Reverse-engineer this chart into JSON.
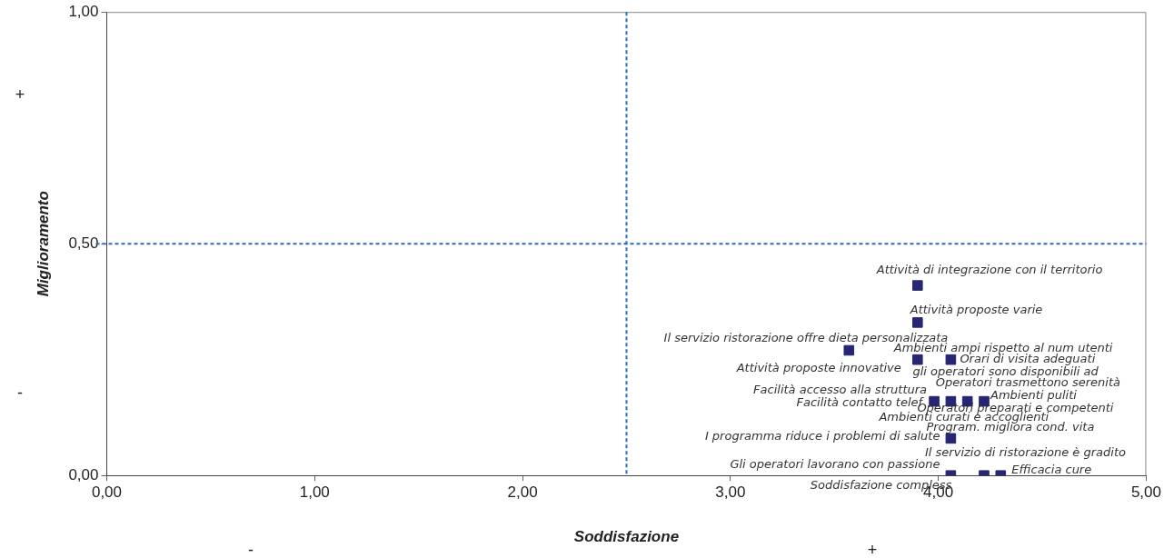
{
  "chart_data": {
    "type": "scatter",
    "xlabel": "Soddisfazione",
    "ylabel": "Miglioramento",
    "x": [
      3.9,
      3.9,
      3.57,
      3.9,
      4.06,
      4.14,
      3.98,
      4.22,
      4.06,
      4.06,
      4.06,
      4.22,
      4.3
    ],
    "values": [
      0.41,
      0.33,
      0.27,
      0.25,
      0.25,
      0.16,
      0.16,
      0.16,
      0.16,
      0.08,
      0,
      0,
      0
    ],
    "color": "#262673",
    "marker": "square",
    "legend": false,
    "grid": false,
    "xlim": [
      0,
      5
    ],
    "xticks": [
      {
        "value": 0,
        "label": "0,00"
      },
      {
        "value": 1,
        "label": "1,00"
      },
      {
        "value": 2,
        "label": "2,00"
      },
      {
        "value": 3,
        "label": "3,00"
      },
      {
        "value": 4,
        "label": "4,00"
      },
      {
        "value": 5,
        "label": "5,00"
      }
    ],
    "ylim": [
      0,
      1
    ],
    "yticks": [
      {
        "value": 0,
        "label": "0,00"
      },
      {
        "value": 0.5,
        "label": "0,50"
      },
      {
        "value": 1,
        "label": "1,00"
      }
    ],
    "ref_lines": [
      {
        "axis": "x",
        "value": 2.5,
        "color": "#2a6ac8",
        "line_style": "dashed"
      },
      {
        "axis": "y",
        "value": 0.5,
        "color": "#2a6ac8",
        "line_style": "dashed"
      }
    ],
    "annotations": [
      "+",
      "-",
      "-",
      "+",
      {
        "text": "Attività di integrazione con il territorio",
        "x": 3.9,
        "y": 0.41
      },
      {
        "text": "Attività proposte varie",
        "x": 3.9,
        "y": 0.33
      },
      {
        "text": "Il servizio ristorazione offre dieta personalizzata",
        "x": 3.57,
        "y": 0.27
      },
      {
        "text": "Ambienti ampi rispetto al num utenti",
        "x": 3.9,
        "y": 0.25
      },
      {
        "text": "Attività proposte innovative",
        "x": 3.9,
        "y": 0.25
      },
      {
        "text": "Orari di visita adeguati",
        "x": 4.06,
        "y": 0.25
      },
      {
        "text": "gli operatori sono disponibili ad",
        "x": 4.06,
        "y": 0.25
      },
      {
        "text": "Operatori trasmettono serenità",
        "x": 4.14,
        "y": 0.16
      },
      {
        "text": "Facilità accesso alla struttura",
        "x": 3.98,
        "y": 0.16
      },
      {
        "text": "Ambienti puliti",
        "x": 4.22,
        "y": 0.16
      },
      {
        "text": "Facilità contatto telef",
        "x": 3.98,
        "y": 0.16
      },
      {
        "text": "Operatori preparati e competenti",
        "x": 4.06,
        "y": 0.16
      },
      {
        "text": "Ambienti curati e accoglienti",
        "x": 4.06,
        "y": 0.16
      },
      {
        "text": "Program. migliora cond. vita",
        "x": 4.06,
        "y": 0.08
      },
      {
        "text": "I programma riduce i problemi di salute",
        "x": 4.06,
        "y": 0.08
      },
      {
        "text": "Gli operatori lavorano con passione",
        "x": 4.06,
        "y": 0
      },
      {
        "text": "Il servizio di ristorazione è gradito",
        "x": 4.22,
        "y": 0
      },
      {
        "text": "Efficacia cure",
        "x": 4.3,
        "y": 0
      },
      {
        "text": "Soddisfazione compless",
        "x": 4.06,
        "y": 0
      }
    ]
  }
}
